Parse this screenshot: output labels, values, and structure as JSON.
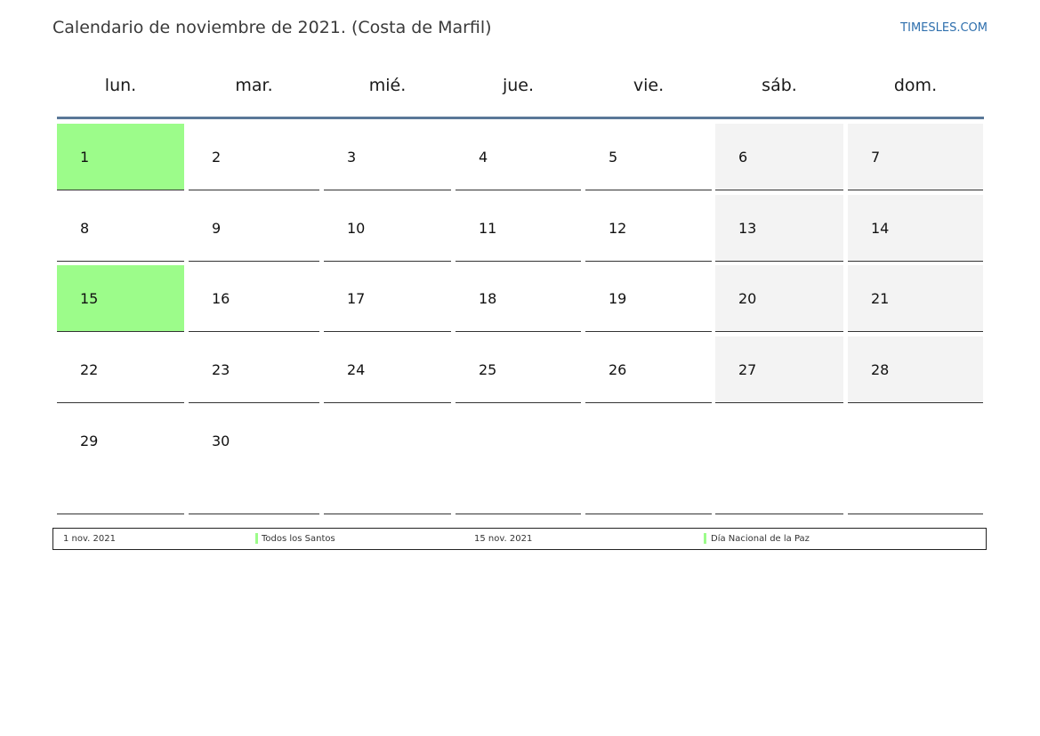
{
  "header": {
    "title": "Calendario de noviembre de 2021. (Costa de Marfil)",
    "brand": "TIMESLES.COM"
  },
  "weekdays": [
    "lun.",
    "mar.",
    "mié.",
    "jue.",
    "vie.",
    "sáb.",
    "dom."
  ],
  "weeks": [
    [
      "1",
      "2",
      "3",
      "4",
      "5",
      "6",
      "7"
    ],
    [
      "8",
      "9",
      "10",
      "11",
      "12",
      "13",
      "14"
    ],
    [
      "15",
      "16",
      "17",
      "18",
      "19",
      "20",
      "21"
    ],
    [
      "22",
      "23",
      "24",
      "25",
      "26",
      "27",
      "28"
    ],
    [
      "29",
      "30",
      "",
      "",
      "",
      "",
      ""
    ]
  ],
  "holidays": [
    "1",
    "15"
  ],
  "colors": {
    "holiday": "#9cfc8a",
    "weekend": "#f3f3f3",
    "header_rule": "#5a7898",
    "brand": "#2e6fad"
  },
  "legend": [
    {
      "date": "1 nov. 2021",
      "name": "Todos los Santos"
    },
    {
      "date": "15 nov. 2021",
      "name": "Día Nacional de la Paz"
    }
  ]
}
